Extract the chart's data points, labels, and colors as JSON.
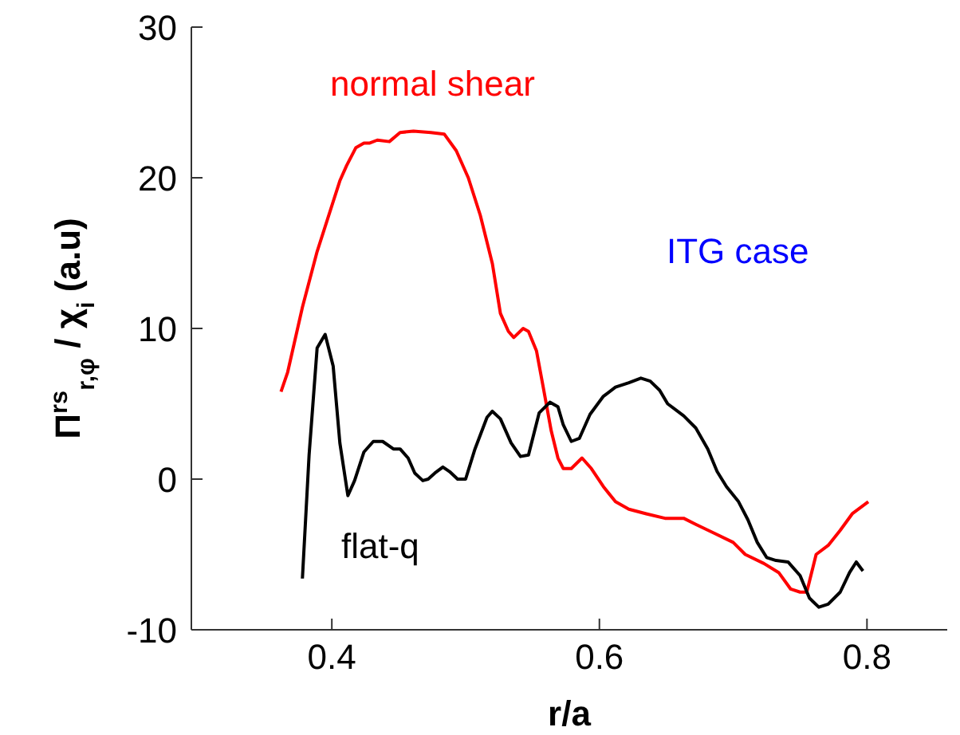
{
  "chart_data": {
    "type": "line",
    "xlabel": "r/a",
    "ylabel": "Π$^{rs}$$_{r,φ}$ / χ$_{i}$ (a.u)",
    "annotations": [
      "ITG case"
    ],
    "xlim": [
      0.295,
      0.86
    ],
    "xticks": [
      0.4,
      0.6,
      0.8
    ],
    "ylim": [
      -10,
      30
    ],
    "yticks": [
      -10,
      0,
      10,
      20,
      30
    ],
    "grid": false,
    "legend": false,
    "marker": "none",
    "line_style": "solid",
    "series": [
      {
        "name": "normal shear",
        "color": "#ff0000",
        "x": [
          0.362,
          0.367,
          0.378,
          0.389,
          0.406,
          0.411,
          0.418,
          0.424,
          0.428,
          0.434,
          0.443,
          0.451,
          0.461,
          0.474,
          0.484,
          0.493,
          0.502,
          0.511,
          0.52,
          0.526,
          0.532,
          0.536,
          0.543,
          0.547,
          0.553,
          0.558,
          0.564,
          0.569,
          0.573,
          0.579,
          0.587,
          0.594,
          0.603,
          0.612,
          0.622,
          0.635,
          0.649,
          0.663,
          0.672,
          0.686,
          0.7,
          0.709,
          0.723,
          0.734,
          0.743,
          0.75,
          0.755,
          0.762,
          0.771,
          0.78,
          0.789,
          0.801
        ],
        "values": [
          5.8,
          7.1,
          11.4,
          15.1,
          19.8,
          20.8,
          22,
          22.3,
          22.3,
          22.5,
          22.4,
          23,
          23.1,
          23,
          22.9,
          21.8,
          20,
          17.5,
          14.3,
          11,
          9.8,
          9.4,
          10,
          9.8,
          8.5,
          6.1,
          3.2,
          1.4,
          0.7,
          0.7,
          1.4,
          0.7,
          -0.5,
          -1.5,
          -2,
          -2.3,
          -2.6,
          -2.6,
          -3,
          -3.6,
          -4.2,
          -5,
          -5.6,
          -6.2,
          -7.3,
          -7.5,
          -7.5,
          -5,
          -4.4,
          -3.4,
          -2.3,
          -1.5
        ]
      },
      {
        "name": "flat-q",
        "color": "#000000",
        "x": [
          0.378,
          0.383,
          0.389,
          0.395,
          0.401,
          0.406,
          0.412,
          0.417,
          0.424,
          0.431,
          0.438,
          0.446,
          0.451,
          0.457,
          0.462,
          0.468,
          0.472,
          0.477,
          0.483,
          0.488,
          0.494,
          0.5,
          0.507,
          0.516,
          0.52,
          0.526,
          0.534,
          0.541,
          0.547,
          0.555,
          0.563,
          0.569,
          0.573,
          0.579,
          0.585,
          0.593,
          0.603,
          0.612,
          0.622,
          0.631,
          0.638,
          0.645,
          0.651,
          0.663,
          0.672,
          0.681,
          0.688,
          0.695,
          0.704,
          0.711,
          0.718,
          0.725,
          0.732,
          0.741,
          0.75,
          0.757,
          0.764,
          0.771,
          0.78,
          0.787,
          0.792,
          0.797
        ],
        "values": [
          -6.6,
          1.6,
          8.7,
          9.6,
          7.5,
          2.4,
          -1.1,
          -0.1,
          1.8,
          2.5,
          2.5,
          2,
          2,
          1.4,
          0.4,
          -0.1,
          0,
          0.4,
          0.8,
          0.5,
          0,
          0,
          2,
          4.1,
          4.5,
          4,
          2.4,
          1.5,
          1.6,
          4.4,
          5.1,
          4.8,
          3.6,
          2.5,
          2.7,
          4.3,
          5.5,
          6.1,
          6.4,
          6.7,
          6.5,
          5.9,
          5,
          4.2,
          3.4,
          2,
          0.5,
          -0.5,
          -1.5,
          -2.7,
          -4.2,
          -5.2,
          -5.4,
          -5.5,
          -6.4,
          -7.9,
          -8.5,
          -8.3,
          -7.5,
          -6.2,
          -5.5,
          -6.1
        ]
      }
    ]
  }
}
